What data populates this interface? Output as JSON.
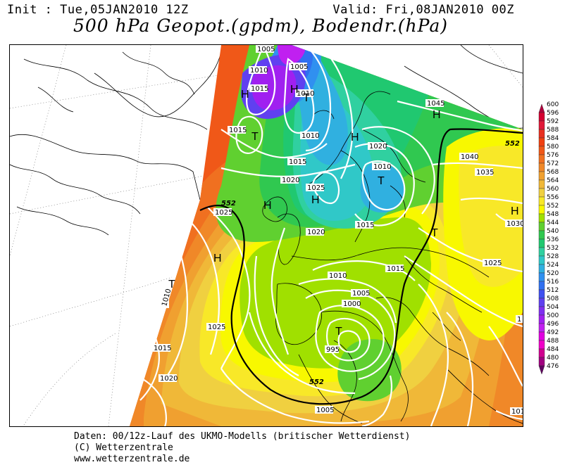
{
  "header": {
    "init": "Init : Tue,05JAN2010 12Z",
    "valid": "Valid: Fri,08JAN2010 00Z",
    "title": "500 hPa Geopot.(gpdm), Bodendr.(hPa)"
  },
  "footer": {
    "line1": "Daten: 00/12z-Lauf des UKMO-Modells (britischer Wetterdienst)",
    "line2": "(C) Wetterzentrale",
    "line3": "www.wetterzentrale.de"
  },
  "legend": {
    "levels": [
      "600",
      "596",
      "592",
      "588",
      "584",
      "580",
      "576",
      "572",
      "568",
      "564",
      "560",
      "556",
      "552",
      "548",
      "544",
      "540",
      "536",
      "532",
      "528",
      "524",
      "520",
      "516",
      "512",
      "508",
      "504",
      "500",
      "496",
      "492",
      "488",
      "484",
      "480",
      "476"
    ],
    "colors": [
      "#b0003c",
      "#d40030",
      "#e01838",
      "#e83020",
      "#f04010",
      "#f05818",
      "#f07020",
      "#f08828",
      "#f0a030",
      "#f0b838",
      "#f0d040",
      "#f8e828",
      "#f8f800",
      "#a0e000",
      "#60d030",
      "#30c850",
      "#20c870",
      "#30d0a0",
      "#30c8c8",
      "#30b0e0",
      "#3090f0",
      "#3070f0",
      "#4050f0",
      "#6040f0",
      "#8030f0",
      "#a020f0",
      "#c020f0",
      "#e000e0",
      "#f000c8",
      "#d00090",
      "#a00080",
      "#600060"
    ]
  },
  "pressure_labels": [
    {
      "text": "1005",
      "id": "p1"
    },
    {
      "text": "1010",
      "id": "p2"
    },
    {
      "text": "1005",
      "id": "p3"
    },
    {
      "text": "1015",
      "id": "p4"
    },
    {
      "text": "1010",
      "id": "p5"
    },
    {
      "text": "1015",
      "id": "p6"
    },
    {
      "text": "1010",
      "id": "p7"
    },
    {
      "text": "1045",
      "id": "p8"
    },
    {
      "text": "1020",
      "id": "p9"
    },
    {
      "text": "1015",
      "id": "p10"
    },
    {
      "text": "1010",
      "id": "p11"
    },
    {
      "text": "1040",
      "id": "p12"
    },
    {
      "text": "1020",
      "id": "p13"
    },
    {
      "text": "1025",
      "id": "p14"
    },
    {
      "text": "1035",
      "id": "p15"
    },
    {
      "text": "1025",
      "id": "p16"
    },
    {
      "text": "1015",
      "id": "p17"
    },
    {
      "text": "1020",
      "id": "p18"
    },
    {
      "text": "1030",
      "id": "p19"
    },
    {
      "text": "1015",
      "id": "p20"
    },
    {
      "text": "1010",
      "id": "p21"
    },
    {
      "text": "1025",
      "id": "p22"
    },
    {
      "text": "1010",
      "id": "p23"
    },
    {
      "text": "1005",
      "id": "p24"
    },
    {
      "text": "1000",
      "id": "p25"
    },
    {
      "text": "1025",
      "id": "p26"
    },
    {
      "text": "1015",
      "id": "p27"
    },
    {
      "text": "995",
      "id": "p28"
    },
    {
      "text": "1020",
      "id": "p29"
    },
    {
      "text": "1005",
      "id": "p30"
    },
    {
      "text": "101",
      "id": "p31"
    },
    {
      "text": "1",
      "id": "p32"
    }
  ],
  "contour_552_labels": [
    "552",
    "552",
    "552"
  ],
  "pressure_centers": [
    {
      "type": "H"
    },
    {
      "type": "H"
    },
    {
      "type": "T"
    },
    {
      "type": "T"
    },
    {
      "type": "H"
    },
    {
      "type": "H"
    },
    {
      "type": "H"
    },
    {
      "type": "H"
    },
    {
      "type": "T"
    },
    {
      "type": "H"
    },
    {
      "type": "T"
    },
    {
      "type": "T"
    },
    {
      "type": "H"
    },
    {
      "type": "T"
    }
  ]
}
